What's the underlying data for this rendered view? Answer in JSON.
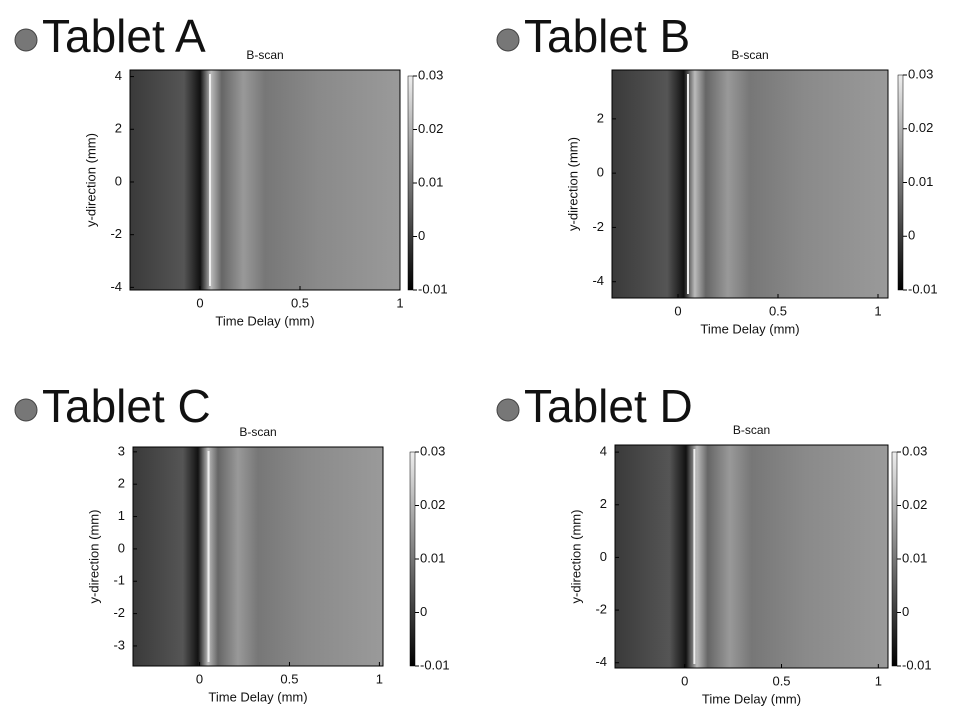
{
  "chart_data": [
    {
      "type": "heatmap",
      "title": "Tablet A",
      "subtitle": "B-scan",
      "x_label": "Time Delay (mm)",
      "y_label": "y-direction (mm)",
      "xlim": [
        -0.35,
        1.0
      ],
      "xticks": [
        0,
        0.5,
        1
      ],
      "ylim": [
        -4.1,
        4.25
      ],
      "yticks": [
        -4,
        -2,
        0,
        2,
        4
      ],
      "clim": [
        -0.01,
        0.03
      ],
      "cticks": [
        -0.01,
        0,
        0.01,
        0.02,
        0.03
      ]
    },
    {
      "type": "heatmap",
      "title": "Tablet B",
      "subtitle": "B-scan",
      "x_label": "Time Delay (mm)",
      "y_label": "y-direction (mm)",
      "xlim": [
        -0.33,
        1.05
      ],
      "xticks": [
        0,
        0.5,
        1
      ],
      "ylim": [
        -4.6,
        3.8
      ],
      "yticks": [
        -4,
        -2,
        0,
        2
      ],
      "clim": [
        -0.01,
        0.03
      ],
      "cticks": [
        -0.01,
        0,
        0.01,
        0.02,
        0.03
      ]
    },
    {
      "type": "heatmap",
      "title": "Tablet C",
      "subtitle": "B-scan",
      "x_label": "Time Delay (mm)",
      "y_label": "y-direction (mm)",
      "xlim": [
        -0.37,
        1.02
      ],
      "xticks": [
        0,
        0.5,
        1
      ],
      "ylim": [
        -3.62,
        3.15
      ],
      "yticks": [
        -3,
        -2,
        -1,
        0,
        1,
        2,
        3
      ],
      "clim": [
        -0.01,
        0.03
      ],
      "cticks": [
        -0.01,
        0,
        0.01,
        0.02,
        0.03
      ]
    },
    {
      "type": "heatmap",
      "title": "Tablet D",
      "subtitle": "B-scan",
      "x_label": "Time Delay (mm)",
      "y_label": "y-direction (mm)",
      "xlim": [
        -0.36,
        1.05
      ],
      "xticks": [
        0,
        0.5,
        1
      ],
      "ylim": [
        -4.2,
        4.27
      ],
      "yticks": [
        -4,
        -2,
        0,
        2,
        4
      ],
      "clim": [
        -0.01,
        0.03
      ],
      "cticks": [
        -0.01,
        0,
        0.01,
        0.02,
        0.03
      ]
    }
  ]
}
